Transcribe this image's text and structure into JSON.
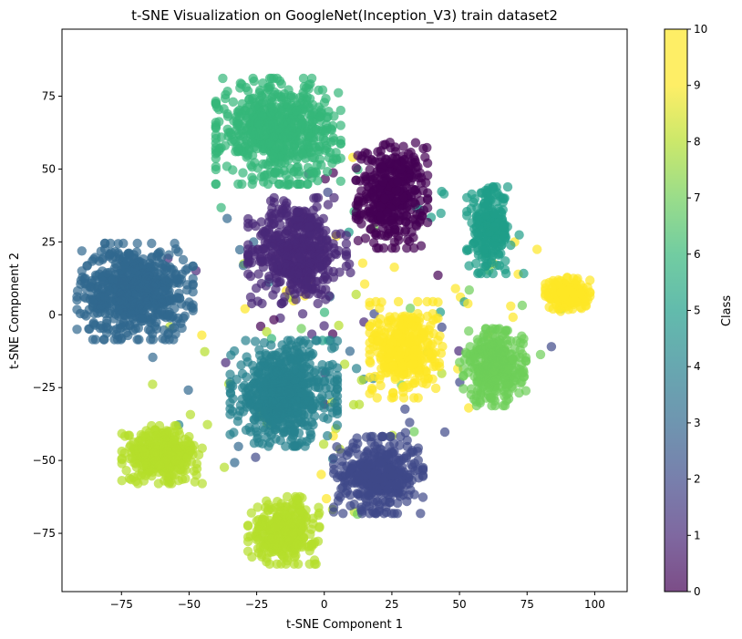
{
  "chart_data": {
    "type": "scatter",
    "title": "t-SNE Visualization on GoogleNet(Inception_V3) train dataset2",
    "xlabel": "t-SNE Component 1",
    "ylabel": "t-SNE Component 2",
    "xlim": [
      -97,
      112
    ],
    "ylim": [
      -95,
      98
    ],
    "xticks": [
      -75,
      -50,
      -25,
      0,
      25,
      50,
      75,
      100
    ],
    "yticks": [
      -75,
      -50,
      -25,
      0,
      25,
      50,
      75
    ],
    "xtick_labels": [
      "−75",
      "−50",
      "−25",
      "0",
      "25",
      "50",
      "75",
      "100"
    ],
    "ytick_labels": [
      "−75",
      "−50",
      "−25",
      "0",
      "25",
      "50",
      "75"
    ],
    "grid": false,
    "colormap": "viridis",
    "alpha": 0.7,
    "colorbar": {
      "label": "Class",
      "range": [
        0,
        10
      ],
      "ticks": [
        0,
        1,
        2,
        3,
        4,
        5,
        6,
        7,
        8,
        9,
        10
      ],
      "tick_labels": [
        "0",
        "1",
        "2",
        "3",
        "4",
        "5",
        "6",
        "7",
        "8",
        "9",
        "10"
      ]
    },
    "clusters": [
      {
        "class": 0,
        "center": [
          25,
          41
        ],
        "spread": [
          8,
          11
        ],
        "count": 380
      },
      {
        "class": 1,
        "center": [
          -10,
          22
        ],
        "spread": [
          11,
          11
        ],
        "count": 480
      },
      {
        "class": 2,
        "center": [
          20,
          -55
        ],
        "spread": [
          10,
          8
        ],
        "count": 380
      },
      {
        "class": 3,
        "center": [
          -70,
          8
        ],
        "spread": [
          13,
          10
        ],
        "count": 650
      },
      {
        "class": 4,
        "center": [
          -15,
          -27
        ],
        "spread": [
          12,
          11
        ],
        "count": 620
      },
      {
        "class": 5,
        "center": [
          61,
          29
        ],
        "spread": [
          5,
          9
        ],
        "count": 220
      },
      {
        "class": 6,
        "center": [
          -17,
          63
        ],
        "spread": [
          14,
          11
        ],
        "count": 620
      },
      {
        "class": 7,
        "center": [
          63,
          -18
        ],
        "spread": [
          7,
          8
        ],
        "count": 320
      },
      {
        "class": 8,
        "center": [
          -60,
          -48
        ],
        "spread": [
          9,
          6
        ],
        "count": 330
      },
      {
        "class": 8,
        "center": [
          -15,
          -74
        ],
        "spread": [
          8,
          7
        ],
        "count": 300
      },
      {
        "class": 9,
        "center": [
          30,
          -12
        ],
        "spread": [
          8,
          10
        ],
        "count": 360
      },
      {
        "class": 10,
        "center": [
          90,
          7
        ],
        "spread": [
          5,
          3.5
        ],
        "count": 200
      }
    ],
    "outlier_count": 180
  }
}
